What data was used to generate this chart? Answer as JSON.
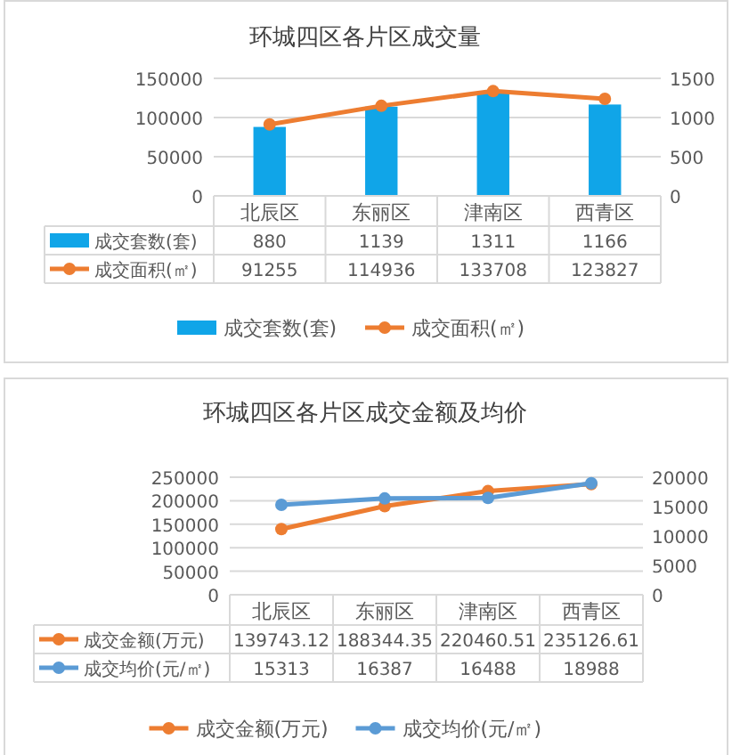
{
  "chart_data": [
    {
      "type": "bar",
      "title": "环城四区各片区成交量",
      "categories": [
        "北辰区",
        "东丽区",
        "津南区",
        "西青区"
      ],
      "series": [
        {
          "name": "成交套数(套)",
          "axis": "y2",
          "color": "#10a5e8",
          "values": [
            880,
            1139,
            1311,
            1166
          ]
        },
        {
          "name": "成交面积(㎡)",
          "type": "line",
          "color": "#ed7d31",
          "values": [
            91255,
            114936,
            133708,
            123827
          ]
        }
      ],
      "ylim": [
        0,
        150000
      ],
      "yticks": [
        0,
        50000,
        100000,
        150000
      ],
      "y2lim": [
        0,
        1500
      ],
      "y2ticks": [
        0,
        500,
        1000,
        1500
      ],
      "grid": "y",
      "legend": "bottom",
      "marker": "circle",
      "data_labels": true
    },
    {
      "type": "line",
      "title": "环城四区各片区成交金额及均价",
      "categories": [
        "北辰区",
        "东丽区",
        "津南区",
        "西青区"
      ],
      "series": [
        {
          "name": "成交金额(万元)",
          "color": "#ed7d31",
          "values": [
            139743.12,
            188344.35,
            220460.51,
            235126.61
          ]
        },
        {
          "name": "成交均价(元/㎡)",
          "axis": "y2",
          "color": "#5b9bd5",
          "values": [
            15313,
            16387,
            16488,
            18988
          ]
        }
      ],
      "ylim": [
        0,
        250000
      ],
      "yticks": [
        0,
        50000,
        100000,
        150000,
        200000,
        250000
      ],
      "y2lim": [
        0,
        20000
      ],
      "y2ticks": [
        0,
        5000,
        10000,
        15000,
        20000
      ],
      "grid": "y",
      "legend": "bottom",
      "marker": "circle",
      "data_labels": true
    }
  ]
}
